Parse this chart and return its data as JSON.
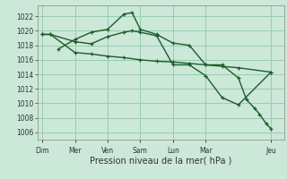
{
  "bg_color": "#cce8d8",
  "grid_color": "#99ccb0",
  "line_color": "#1a5c2a",
  "xlabel": "Pression niveau de la mer( hPa )",
  "ylim": [
    1005.0,
    1023.5
  ],
  "yticks": [
    1006,
    1008,
    1010,
    1012,
    1014,
    1016,
    1018,
    1020,
    1022
  ],
  "xtick_labels": [
    "Dim",
    "Mer",
    "Ven",
    "Sam",
    "Lun",
    "Mar",
    "Jeu"
  ],
  "xtick_positions": [
    0,
    2,
    4,
    6,
    8,
    10,
    14
  ],
  "xlim": [
    -0.3,
    14.8
  ],
  "series": [
    {
      "x": [
        0,
        0.5,
        2,
        3,
        4,
        5,
        6,
        7,
        8,
        9,
        10,
        11,
        12,
        14
      ],
      "y": [
        1019.5,
        1019.5,
        1017.0,
        1016.8,
        1016.5,
        1016.3,
        1016.0,
        1015.8,
        1015.7,
        1015.5,
        1015.3,
        1015.1,
        1014.9,
        1014.3
      ]
    },
    {
      "x": [
        0,
        0.5,
        2,
        3,
        4,
        5,
        5.5,
        6,
        7,
        8,
        9,
        10,
        11,
        12,
        14
      ],
      "y": [
        1019.5,
        1019.5,
        1018.5,
        1018.2,
        1019.2,
        1019.8,
        1020.0,
        1019.8,
        1019.3,
        1015.3,
        1015.3,
        1013.8,
        1010.8,
        1009.8,
        1014.3
      ]
    },
    {
      "x": [
        1,
        2,
        3,
        4,
        5,
        5.5,
        6,
        7,
        8,
        9,
        10,
        11,
        12,
        12.5,
        13,
        13.3,
        13.7,
        14
      ],
      "y": [
        1017.5,
        1018.8,
        1019.8,
        1020.2,
        1022.3,
        1022.5,
        1020.2,
        1019.5,
        1018.3,
        1018.0,
        1015.3,
        1015.3,
        1013.5,
        1010.5,
        1009.3,
        1008.5,
        1007.2,
        1006.5
      ]
    }
  ]
}
